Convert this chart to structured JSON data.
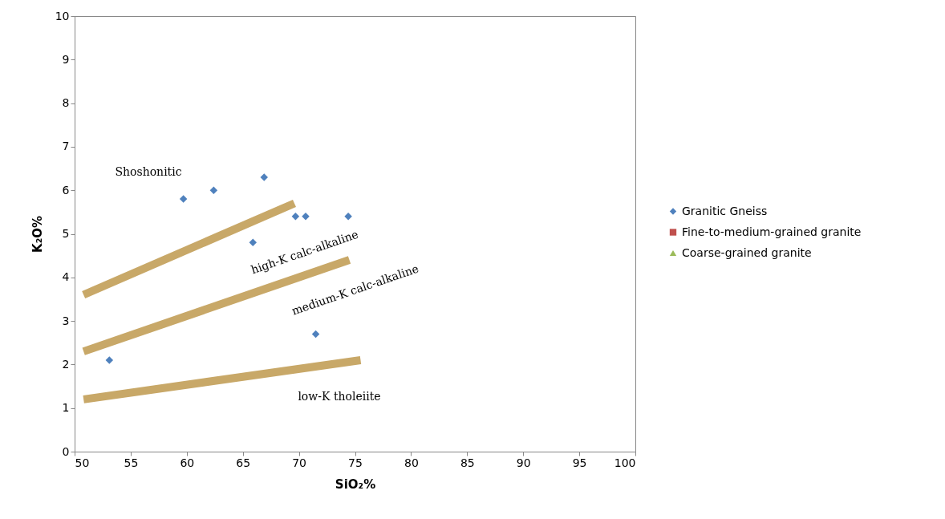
{
  "chart_data": {
    "type": "scatter",
    "xlabel": "SiO₂%",
    "ylabel": "K₂O%",
    "xlim": [
      50,
      100
    ],
    "ylim": [
      0,
      10
    ],
    "xticks": [
      50,
      55,
      60,
      65,
      70,
      75,
      80,
      85,
      90,
      95,
      100
    ],
    "yticks": [
      0,
      1,
      2,
      3,
      4,
      5,
      6,
      7,
      8,
      9,
      10
    ],
    "grid": false,
    "legend": "right",
    "series": [
      {
        "name": "Granitic Gneiss",
        "color": "#4f81bd",
        "marker": "diamond",
        "x": [
          53.1,
          59.7,
          62.4,
          65.9,
          66.9,
          69.7,
          70.6,
          71.5,
          74.4
        ],
        "values": [
          2.1,
          5.8,
          6.0,
          4.8,
          6.3,
          5.4,
          5.4,
          2.7,
          5.4
        ]
      },
      {
        "name": "Fine-to-medium-grained granite",
        "color": "#c0504d",
        "marker": "square"
      },
      {
        "name": "Coarse-grained granite",
        "color": "#9bbb59",
        "marker": "triangle"
      },
      {
        "type": "line",
        "color": "#c8a868",
        "x": [
          50.8,
          69.6
        ],
        "values": [
          3.6,
          5.7
        ]
      },
      {
        "type": "line",
        "color": "#c8a868",
        "x": [
          50.8,
          74.5
        ],
        "values": [
          2.3,
          4.4
        ]
      },
      {
        "type": "line",
        "color": "#c8a868",
        "x": [
          50.8,
          75.5
        ],
        "values": [
          1.2,
          2.1
        ]
      }
    ],
    "annotations": [
      "Shoshonitic",
      "high-K calc-alkaline",
      "medium-K calc-alkaline",
      "low-K tholeiite"
    ]
  }
}
